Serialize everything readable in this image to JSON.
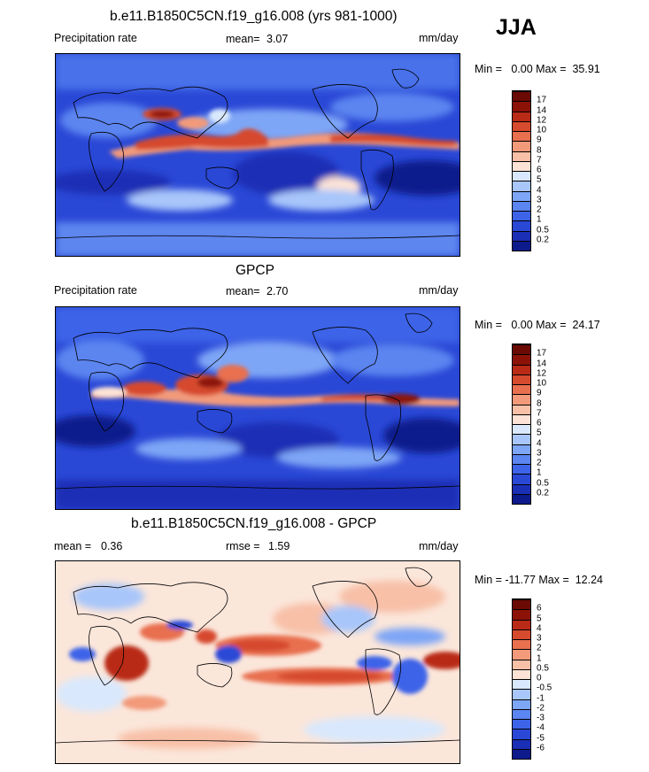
{
  "season": "JJA",
  "panels": [
    {
      "title": "b.e11.B1850C5CN.f19_g16.008 (yrs 981-1000)",
      "left_label": "Precipitation rate",
      "mean_label": "mean=",
      "mean_value": "3.07",
      "units": "mm/day",
      "minmax": "Min =   0.00 Max =  35.91",
      "colorbar_ticks": [
        "17",
        "14",
        "12",
        "10",
        "9",
        "8",
        "7",
        "6",
        "5",
        "4",
        "3",
        "2",
        "1",
        "0.5",
        "0.2"
      ]
    },
    {
      "title": "GPCP",
      "left_label": "Precipitation rate",
      "mean_label": "mean=",
      "mean_value": "2.70",
      "units": "mm/day",
      "minmax": "Min =   0.00 Max =  24.17",
      "colorbar_ticks": [
        "17",
        "14",
        "12",
        "10",
        "9",
        "8",
        "7",
        "6",
        "5",
        "4",
        "3",
        "2",
        "1",
        "0.5",
        "0.2"
      ]
    },
    {
      "title": "b.e11.B1850C5CN.f19_g16.008 - GPCP",
      "left_label": "mean =",
      "left_value": "0.36",
      "mean_label": "rmse =",
      "mean_value": "1.59",
      "units": "mm/day",
      "minmax": "Min = -11.77 Max =  12.24",
      "colorbar_ticks": [
        "6",
        "5",
        "4",
        "3",
        "2",
        "1",
        "0.5",
        "0",
        "-0.5",
        "-1",
        "-2",
        "-3",
        "-4",
        "-5",
        "-6"
      ]
    }
  ],
  "colors": {
    "precip_scale": [
      "#0c1a8c",
      "#1a2fb5",
      "#2a48d6",
      "#3d64e8",
      "#5b85f0",
      "#7ea6f6",
      "#a8c6fa",
      "#d9e8fd",
      "#fde3d6",
      "#f8c0a7",
      "#f29a7a",
      "#e8704f",
      "#d64a2e",
      "#b92a17",
      "#8c1208",
      "#6b0a02"
    ],
    "diff_scale": [
      "#0c1a8c",
      "#1a2fb5",
      "#2a48d6",
      "#3d64e8",
      "#5b85f0",
      "#7ea6f6",
      "#a8c6fa",
      "#d9e8fd",
      "#fde3d6",
      "#f8c0a7",
      "#f29a7a",
      "#e8704f",
      "#d64a2e",
      "#b92a17",
      "#8c1208",
      "#6b0a02"
    ]
  }
}
